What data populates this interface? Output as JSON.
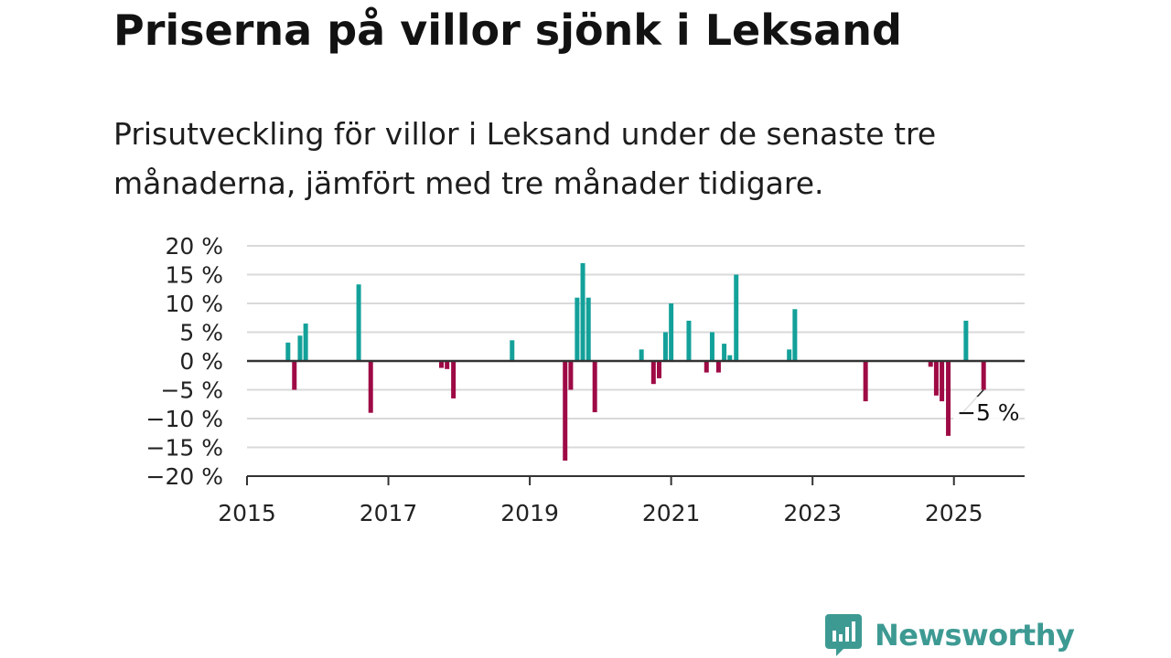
{
  "title": "Priserna på villor sjönk i Leksand",
  "subtitle": "Prisutveckling för villor i Leksand under de senaste tre månaderna, jämfört med tre månader tidigare.",
  "brand": {
    "name": "Newsworthy",
    "icon": "bar-chart-speech-bubble-icon",
    "color": "#3d9a93"
  },
  "colors": {
    "positive": "#13a19a",
    "negative": "#9e0a45",
    "grid": "#d9d9d9",
    "axis": "#333333"
  },
  "chart_data": {
    "type": "bar",
    "x_unit": "year",
    "xlim": [
      2015,
      2026
    ],
    "ylim": [
      -20,
      20
    ],
    "y_ticks": [
      20,
      15,
      10,
      5,
      0,
      -5,
      -10,
      -15,
      -20
    ],
    "y_tick_labels": [
      "20 %",
      "15 %",
      "10 %",
      "5 %",
      "0 %",
      "−5 %",
      "−10 %",
      "−15 %",
      "−20 %"
    ],
    "x_ticks": [
      2015,
      2017,
      2019,
      2021,
      2023,
      2025
    ],
    "x_tick_labels": [
      "2015",
      "2017",
      "2019",
      "2021",
      "2023",
      "2025"
    ],
    "grid": true,
    "annotation": {
      "text": "−5 %",
      "x": 2025.42,
      "y": -5
    },
    "points": [
      {
        "x": 2015.58,
        "y": 3.2
      },
      {
        "x": 2015.67,
        "y": -5
      },
      {
        "x": 2015.75,
        "y": 4.4
      },
      {
        "x": 2015.83,
        "y": 6.5
      },
      {
        "x": 2016.58,
        "y": 13.3
      },
      {
        "x": 2016.75,
        "y": -9
      },
      {
        "x": 2017.75,
        "y": -1.2
      },
      {
        "x": 2017.83,
        "y": -1.4
      },
      {
        "x": 2017.92,
        "y": -6.5
      },
      {
        "x": 2018.75,
        "y": 3.6
      },
      {
        "x": 2019.5,
        "y": -17.3
      },
      {
        "x": 2019.58,
        "y": -5
      },
      {
        "x": 2019.67,
        "y": 11
      },
      {
        "x": 2019.75,
        "y": 17
      },
      {
        "x": 2019.83,
        "y": 11
      },
      {
        "x": 2019.92,
        "y": -8.9
      },
      {
        "x": 2020.58,
        "y": 2
      },
      {
        "x": 2020.75,
        "y": -4
      },
      {
        "x": 2020.83,
        "y": -3
      },
      {
        "x": 2020.92,
        "y": 5
      },
      {
        "x": 2021.0,
        "y": 10
      },
      {
        "x": 2021.25,
        "y": 7
      },
      {
        "x": 2021.5,
        "y": -2
      },
      {
        "x": 2021.58,
        "y": 5
      },
      {
        "x": 2021.67,
        "y": -2
      },
      {
        "x": 2021.75,
        "y": 3
      },
      {
        "x": 2021.83,
        "y": 1
      },
      {
        "x": 2021.92,
        "y": 15
      },
      {
        "x": 2022.67,
        "y": 2
      },
      {
        "x": 2022.75,
        "y": 9
      },
      {
        "x": 2023.75,
        "y": -7
      },
      {
        "x": 2024.67,
        "y": -1
      },
      {
        "x": 2024.75,
        "y": -6
      },
      {
        "x": 2024.83,
        "y": -7
      },
      {
        "x": 2024.92,
        "y": -13
      },
      {
        "x": 2025.17,
        "y": 7
      },
      {
        "x": 2025.42,
        "y": -5
      }
    ]
  }
}
